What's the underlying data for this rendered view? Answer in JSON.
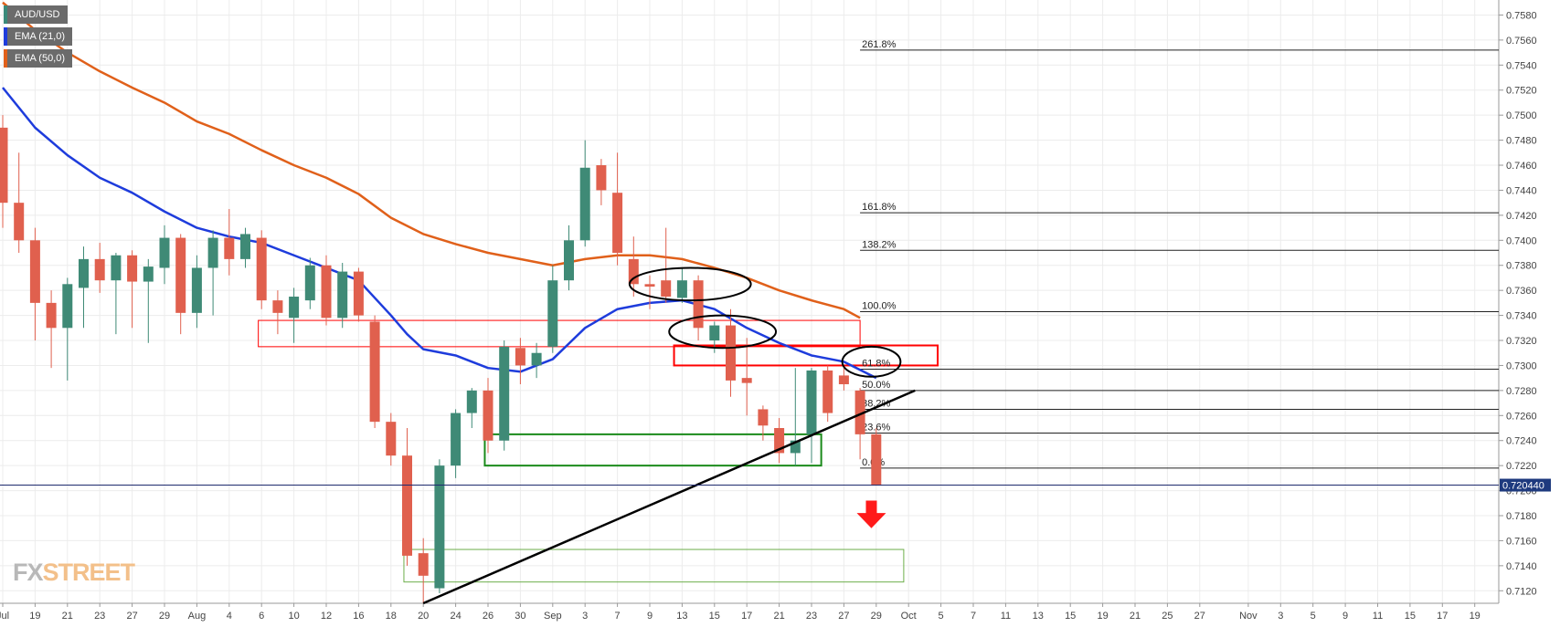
{
  "legend": [
    {
      "label": "AUD/USD",
      "color": "#3a8a7a"
    },
    {
      "label": "EMA (21,0)",
      "color": "#1e3cdc"
    },
    {
      "label": "EMA (50,0)",
      "color": "#e0601a"
    }
  ],
  "logo": {
    "part1": "FX",
    "part2": "STREET"
  },
  "chart_data": {
    "type": "candlestick",
    "symbol": "AUD/USD",
    "last_price_label": "0.720440",
    "last_price": 0.72044,
    "ylim": [
      0.711,
      0.7592
    ],
    "y_ticks": [
      "0.7120",
      "0.7140",
      "0.7160",
      "0.7180",
      "0.7200",
      "0.7220",
      "0.7240",
      "0.7260",
      "0.7280",
      "0.7300",
      "0.7320",
      "0.7340",
      "0.7360",
      "0.7380",
      "0.7400",
      "0.7420",
      "0.7440",
      "0.7460",
      "0.7480",
      "0.7500",
      "0.7520",
      "0.7540",
      "0.7560",
      "0.7580"
    ],
    "x_ticks": [
      {
        "label": "Jul",
        "d": 0
      },
      {
        "label": "19",
        "d": 2
      },
      {
        "label": "21",
        "d": 4
      },
      {
        "label": "23",
        "d": 6
      },
      {
        "label": "27",
        "d": 8
      },
      {
        "label": "29",
        "d": 10
      },
      {
        "label": "Aug",
        "d": 12
      },
      {
        "label": "4",
        "d": 14
      },
      {
        "label": "6",
        "d": 16
      },
      {
        "label": "10",
        "d": 18
      },
      {
        "label": "12",
        "d": 20
      },
      {
        "label": "16",
        "d": 22
      },
      {
        "label": "18",
        "d": 24
      },
      {
        "label": "20",
        "d": 26
      },
      {
        "label": "24",
        "d": 28
      },
      {
        "label": "26",
        "d": 30
      },
      {
        "label": "30",
        "d": 32
      },
      {
        "label": "Sep",
        "d": 34
      },
      {
        "label": "3",
        "d": 36
      },
      {
        "label": "7",
        "d": 38
      },
      {
        "label": "9",
        "d": 40
      },
      {
        "label": "13",
        "d": 42
      },
      {
        "label": "15",
        "d": 44
      },
      {
        "label": "17",
        "d": 46
      },
      {
        "label": "21",
        "d": 48
      },
      {
        "label": "23",
        "d": 50
      },
      {
        "label": "27",
        "d": 52
      },
      {
        "label": "29",
        "d": 54
      },
      {
        "label": "Oct",
        "d": 56
      },
      {
        "label": "5",
        "d": 58
      },
      {
        "label": "7",
        "d": 60
      },
      {
        "label": "11",
        "d": 62
      },
      {
        "label": "13",
        "d": 64
      },
      {
        "label": "15",
        "d": 66
      },
      {
        "label": "19",
        "d": 68
      },
      {
        "label": "21",
        "d": 70
      },
      {
        "label": "25",
        "d": 72
      },
      {
        "label": "27",
        "d": 74
      },
      {
        "label": "Nov",
        "d": 77
      },
      {
        "label": "3",
        "d": 79
      },
      {
        "label": "5",
        "d": 81
      },
      {
        "label": "9",
        "d": 83
      },
      {
        "label": "11",
        "d": 85
      },
      {
        "label": "15",
        "d": 87
      },
      {
        "label": "17",
        "d": 89
      },
      {
        "label": "19",
        "d": 91
      }
    ],
    "candles": [
      {
        "d": 0,
        "o": 0.749,
        "h": 0.75,
        "l": 0.741,
        "c": 0.743
      },
      {
        "d": 1,
        "o": 0.743,
        "h": 0.747,
        "l": 0.739,
        "c": 0.74
      },
      {
        "d": 2,
        "o": 0.74,
        "h": 0.741,
        "l": 0.732,
        "c": 0.735
      },
      {
        "d": 3,
        "o": 0.735,
        "h": 0.736,
        "l": 0.7298,
        "c": 0.733
      },
      {
        "d": 4,
        "o": 0.733,
        "h": 0.737,
        "l": 0.7288,
        "c": 0.7365
      },
      {
        "d": 5,
        "o": 0.7362,
        "h": 0.7395,
        "l": 0.733,
        "c": 0.7385
      },
      {
        "d": 6,
        "o": 0.7385,
        "h": 0.7398,
        "l": 0.7358,
        "c": 0.7368
      },
      {
        "d": 7,
        "o": 0.7368,
        "h": 0.739,
        "l": 0.7325,
        "c": 0.7388
      },
      {
        "d": 8,
        "o": 0.7388,
        "h": 0.7392,
        "l": 0.733,
        "c": 0.7367
      },
      {
        "d": 9,
        "o": 0.7367,
        "h": 0.7385,
        "l": 0.7318,
        "c": 0.7379
      },
      {
        "d": 10,
        "o": 0.7378,
        "h": 0.7412,
        "l": 0.7365,
        "c": 0.7402
      },
      {
        "d": 11,
        "o": 0.7402,
        "h": 0.7405,
        "l": 0.7325,
        "c": 0.7342
      },
      {
        "d": 12,
        "o": 0.7342,
        "h": 0.7388,
        "l": 0.733,
        "c": 0.7378
      },
      {
        "d": 13,
        "o": 0.7378,
        "h": 0.7408,
        "l": 0.734,
        "c": 0.7402
      },
      {
        "d": 14,
        "o": 0.7402,
        "h": 0.7425,
        "l": 0.7372,
        "c": 0.7385
      },
      {
        "d": 15,
        "o": 0.7385,
        "h": 0.741,
        "l": 0.7378,
        "c": 0.7405
      },
      {
        "d": 16,
        "o": 0.7402,
        "h": 0.7408,
        "l": 0.7345,
        "c": 0.7352
      },
      {
        "d": 17,
        "o": 0.7352,
        "h": 0.736,
        "l": 0.7325,
        "c": 0.7342
      },
      {
        "d": 18,
        "o": 0.7338,
        "h": 0.7362,
        "l": 0.7318,
        "c": 0.7355
      },
      {
        "d": 19,
        "o": 0.7352,
        "h": 0.7386,
        "l": 0.7345,
        "c": 0.738
      },
      {
        "d": 20,
        "o": 0.738,
        "h": 0.7388,
        "l": 0.7332,
        "c": 0.7338
      },
      {
        "d": 21,
        "o": 0.7338,
        "h": 0.7382,
        "l": 0.733,
        "c": 0.7375
      },
      {
        "d": 22,
        "o": 0.7375,
        "h": 0.7378,
        "l": 0.7335,
        "c": 0.734
      },
      {
        "d": 23,
        "o": 0.7335,
        "h": 0.734,
        "l": 0.725,
        "c": 0.7255
      },
      {
        "d": 24,
        "o": 0.7255,
        "h": 0.7262,
        "l": 0.722,
        "c": 0.7228
      },
      {
        "d": 25,
        "o": 0.7228,
        "h": 0.725,
        "l": 0.714,
        "c": 0.7148
      },
      {
        "d": 26,
        "o": 0.715,
        "h": 0.7162,
        "l": 0.711,
        "c": 0.7132
      },
      {
        "d": 27,
        "o": 0.7122,
        "h": 0.7225,
        "l": 0.7118,
        "c": 0.722
      },
      {
        "d": 28,
        "o": 0.722,
        "h": 0.7265,
        "l": 0.721,
        "c": 0.7262
      },
      {
        "d": 29,
        "o": 0.7262,
        "h": 0.7282,
        "l": 0.725,
        "c": 0.728
      },
      {
        "d": 30,
        "o": 0.728,
        "h": 0.729,
        "l": 0.723,
        "c": 0.724
      },
      {
        "d": 31,
        "o": 0.724,
        "h": 0.732,
        "l": 0.7232,
        "c": 0.7315
      },
      {
        "d": 32,
        "o": 0.7314,
        "h": 0.7322,
        "l": 0.7285,
        "c": 0.73
      },
      {
        "d": 33,
        "o": 0.73,
        "h": 0.7318,
        "l": 0.729,
        "c": 0.731
      },
      {
        "d": 34,
        "o": 0.7315,
        "h": 0.738,
        "l": 0.731,
        "c": 0.7368
      },
      {
        "d": 35,
        "o": 0.7368,
        "h": 0.7412,
        "l": 0.736,
        "c": 0.74
      },
      {
        "d": 36,
        "o": 0.74,
        "h": 0.748,
        "l": 0.7395,
        "c": 0.7458
      },
      {
        "d": 37,
        "o": 0.746,
        "h": 0.7465,
        "l": 0.7428,
        "c": 0.744
      },
      {
        "d": 38,
        "o": 0.7438,
        "h": 0.747,
        "l": 0.738,
        "c": 0.739
      },
      {
        "d": 39,
        "o": 0.7385,
        "h": 0.7403,
        "l": 0.7355,
        "c": 0.7365
      },
      {
        "d": 40,
        "o": 0.7365,
        "h": 0.7372,
        "l": 0.7345,
        "c": 0.7363
      },
      {
        "d": 41,
        "o": 0.7368,
        "h": 0.741,
        "l": 0.735,
        "c": 0.7355
      },
      {
        "d": 42,
        "o": 0.7354,
        "h": 0.7378,
        "l": 0.735,
        "c": 0.7368
      },
      {
        "d": 43,
        "o": 0.7368,
        "h": 0.7372,
        "l": 0.732,
        "c": 0.733
      },
      {
        "d": 44,
        "o": 0.732,
        "h": 0.7335,
        "l": 0.731,
        "c": 0.7332
      },
      {
        "d": 45,
        "o": 0.7332,
        "h": 0.7345,
        "l": 0.7275,
        "c": 0.7288
      },
      {
        "d": 46,
        "o": 0.729,
        "h": 0.7322,
        "l": 0.726,
        "c": 0.7286
      },
      {
        "d": 47,
        "o": 0.7265,
        "h": 0.7268,
        "l": 0.724,
        "c": 0.7252
      },
      {
        "d": 48,
        "o": 0.725,
        "h": 0.7258,
        "l": 0.7222,
        "c": 0.723
      },
      {
        "d": 49,
        "o": 0.723,
        "h": 0.7298,
        "l": 0.722,
        "c": 0.724
      },
      {
        "d": 50,
        "o": 0.7245,
        "h": 0.7298,
        "l": 0.7222,
        "c": 0.7296
      },
      {
        "d": 51,
        "o": 0.7296,
        "h": 0.73,
        "l": 0.7255,
        "c": 0.7262
      },
      {
        "d": 52,
        "o": 0.7292,
        "h": 0.7298,
        "l": 0.728,
        "c": 0.7285
      },
      {
        "d": 53,
        "o": 0.728,
        "h": 0.7282,
        "l": 0.7225,
        "c": 0.7245
      },
      {
        "d": 54,
        "o": 0.7245,
        "h": 0.725,
        "l": 0.7204,
        "c": 0.7204
      }
    ],
    "ema21": [
      [
        0,
        0.7522
      ],
      [
        2,
        0.749
      ],
      [
        4,
        0.7468
      ],
      [
        6,
        0.745
      ],
      [
        8,
        0.7438
      ],
      [
        10,
        0.7423
      ],
      [
        12,
        0.741
      ],
      [
        14,
        0.7403
      ],
      [
        16,
        0.7398
      ],
      [
        18,
        0.7388
      ],
      [
        20,
        0.7378
      ],
      [
        22,
        0.7368
      ],
      [
        24,
        0.734
      ],
      [
        25,
        0.7325
      ],
      [
        26,
        0.7313
      ],
      [
        28,
        0.7308
      ],
      [
        30,
        0.7298
      ],
      [
        32,
        0.7295
      ],
      [
        34,
        0.7305
      ],
      [
        36,
        0.733
      ],
      [
        38,
        0.7345
      ],
      [
        40,
        0.735
      ],
      [
        42,
        0.7352
      ],
      [
        44,
        0.7345
      ],
      [
        46,
        0.733
      ],
      [
        48,
        0.7318
      ],
      [
        50,
        0.7308
      ],
      [
        52,
        0.7303
      ],
      [
        54,
        0.729
      ]
    ],
    "ema50": [
      [
        0,
        0.759
      ],
      [
        2,
        0.7568
      ],
      [
        4,
        0.755
      ],
      [
        6,
        0.7535
      ],
      [
        8,
        0.7522
      ],
      [
        10,
        0.751
      ],
      [
        12,
        0.7495
      ],
      [
        14,
        0.7485
      ],
      [
        16,
        0.7472
      ],
      [
        18,
        0.746
      ],
      [
        20,
        0.745
      ],
      [
        22,
        0.7437
      ],
      [
        24,
        0.7418
      ],
      [
        26,
        0.7405
      ],
      [
        28,
        0.7397
      ],
      [
        30,
        0.739
      ],
      [
        32,
        0.7385
      ],
      [
        34,
        0.738
      ],
      [
        36,
        0.7385
      ],
      [
        38,
        0.7388
      ],
      [
        40,
        0.7388
      ],
      [
        42,
        0.7385
      ],
      [
        44,
        0.7378
      ],
      [
        46,
        0.737
      ],
      [
        48,
        0.736
      ],
      [
        50,
        0.7352
      ],
      [
        52,
        0.7345
      ],
      [
        53,
        0.7338
      ]
    ],
    "fibonacci": {
      "start_day": 53,
      "levels": [
        {
          "label": "261.8%",
          "price": 0.7552
        },
        {
          "label": "161.8%",
          "price": 0.7422
        },
        {
          "label": "138.2%",
          "price": 0.7392
        },
        {
          "label": "100.0%",
          "price": 0.7343
        },
        {
          "label": "61.8%",
          "price": 0.7297
        },
        {
          "label": "50.0%",
          "price": 0.728
        },
        {
          "label": "38.2%",
          "price": 0.7265
        },
        {
          "label": "23.6%",
          "price": 0.7246
        },
        {
          "label": "0.0%",
          "price": 0.7218
        }
      ]
    },
    "annotations": {
      "trendline": {
        "d1": 26,
        "p1": 0.711,
        "d2": 56.4,
        "p2": 0.728,
        "color": "#000000"
      },
      "boxes": [
        {
          "d1": 15.8,
          "d2": 53.0,
          "p1": 0.7336,
          "p2": 0.7315,
          "color": "#ff0000",
          "width": 1
        },
        {
          "d1": 41.5,
          "d2": 57.8,
          "p1": 0.7316,
          "p2": 0.73,
          "color": "#ff0000",
          "width": 2
        },
        {
          "d1": 29.8,
          "d2": 50.6,
          "p1": 0.7245,
          "p2": 0.722,
          "color": "#1a8a1a",
          "width": 2
        },
        {
          "d1": 24.8,
          "d2": 55.7,
          "p1": 0.7153,
          "p2": 0.7127,
          "color": "#6cae4a",
          "width": 1
        }
      ],
      "ellipses": [
        {
          "d": 42.5,
          "p": 0.7365,
          "rd": 3.75,
          "rp": 0.0013
        },
        {
          "d": 44.5,
          "p": 0.7327,
          "rd": 3.3,
          "rp": 0.0013
        },
        {
          "d": 53.7,
          "p": 0.7303,
          "rd": 1.8,
          "rp": 0.0012
        }
      ],
      "arrow": {
        "d": 53.7,
        "p_top": 0.7192,
        "p_bottom": 0.717,
        "color": "#ff1a1a"
      }
    },
    "colors": {
      "bull": "#3f8a76",
      "bear": "#e0604e",
      "ema21": "#1e3cdc",
      "ema50": "#e0601a",
      "price_line": "#1e2a6e",
      "price_tag": "#1e3a7e"
    }
  }
}
